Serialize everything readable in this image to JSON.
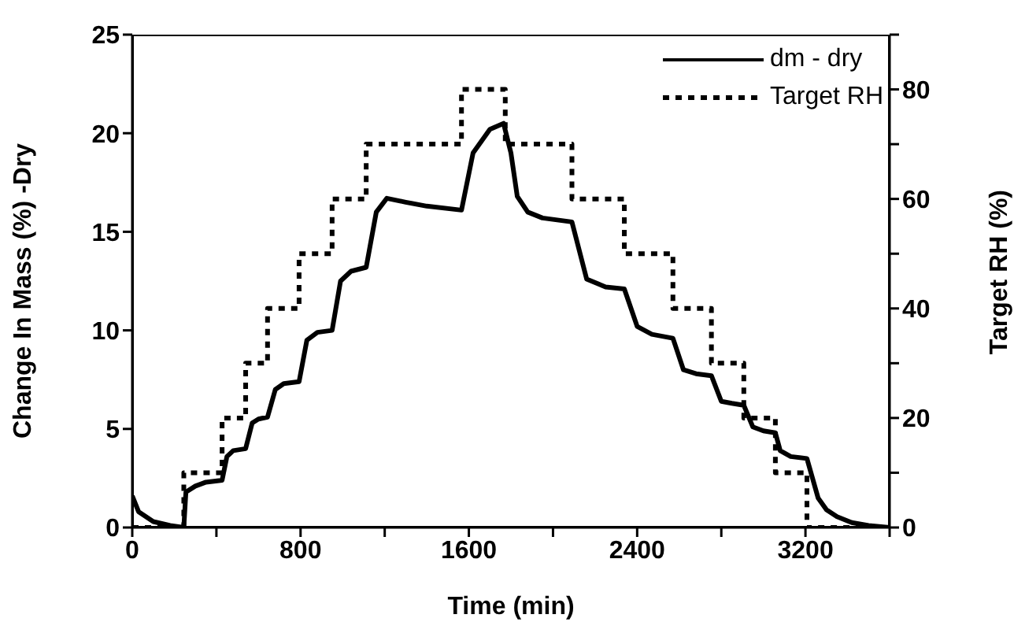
{
  "chart_data": {
    "type": "line",
    "xlabel": "Time (min)",
    "ylabel": "Change In Mass (%) -Dry",
    "y2label": "Target RH (%)",
    "xlim": [
      0,
      3600
    ],
    "xticks": [
      0,
      {
        "value": 400,
        "label": null
      },
      800,
      {
        "value": 1200,
        "label": null
      },
      1600,
      {
        "value": 2000,
        "label": null
      },
      2400,
      {
        "value": 2800,
        "label": null
      },
      3200,
      {
        "value": 3600,
        "label": null
      }
    ],
    "ylim": [
      0,
      25
    ],
    "yticks": [
      0,
      5,
      10,
      15,
      20,
      25
    ],
    "y2lim": [
      0,
      90
    ],
    "y2ticks": [
      0,
      {
        "value": 10,
        "label": null
      },
      20,
      {
        "value": 30,
        "label": null
      },
      40,
      {
        "value": 50,
        "label": null
      },
      60,
      {
        "value": 70,
        "label": null
      },
      80,
      {
        "value": 90,
        "label": null
      }
    ],
    "legend": "top right",
    "marker": "none",
    "series": [
      {
        "name": "dm - dry",
        "color": "#000000",
        "line_style": "solid",
        "x": [
          0,
          30,
          100,
          180,
          245,
          255,
          300,
          350,
          427,
          450,
          480,
          539,
          570,
          600,
          643,
          680,
          720,
          793,
          830,
          880,
          950,
          990,
          1040,
          1112,
          1160,
          1210,
          1300,
          1400,
          1565,
          1620,
          1700,
          1765,
          1800,
          1830,
          1880,
          1950,
          2090,
          2160,
          2250,
          2339,
          2400,
          2470,
          2570,
          2620,
          2680,
          2753,
          2800,
          2850,
          2907,
          2950,
          3000,
          3057,
          3080,
          3130,
          3207,
          3260,
          3300,
          3350,
          3420,
          3500,
          3600
        ],
        "values": [
          1.6,
          0.8,
          0.3,
          0.1,
          0,
          1.8,
          2.1,
          2.3,
          2.4,
          3.6,
          3.9,
          4.0,
          5.3,
          5.5,
          5.6,
          7.0,
          7.3,
          7.4,
          9.5,
          9.9,
          10.0,
          12.5,
          13.0,
          13.2,
          16.0,
          16.7,
          16.5,
          16.3,
          16.1,
          19.0,
          20.2,
          20.5,
          19.0,
          16.8,
          16.0,
          15.7,
          15.5,
          12.6,
          12.2,
          12.1,
          10.2,
          9.8,
          9.6,
          8.0,
          7.8,
          7.7,
          6.4,
          6.3,
          6.2,
          5.1,
          4.9,
          4.8,
          3.9,
          3.6,
          3.5,
          1.5,
          0.9,
          0.55,
          0.25,
          0.1,
          0
        ]
      },
      {
        "name": "Target RH",
        "type": "step",
        "axis": "y2",
        "color": "#000000",
        "line_style": "dotted",
        "x": [
          0,
          245,
          427,
          539,
          643,
          793,
          950,
          1112,
          1565,
          1773,
          2090,
          2339,
          2570,
          2753,
          2907,
          3057,
          3207,
          3600
        ],
        "values": [
          0,
          10,
          20,
          30,
          40,
          50,
          60,
          70,
          80,
          70,
          60,
          50,
          40,
          30,
          20,
          10,
          0,
          0
        ]
      }
    ]
  }
}
